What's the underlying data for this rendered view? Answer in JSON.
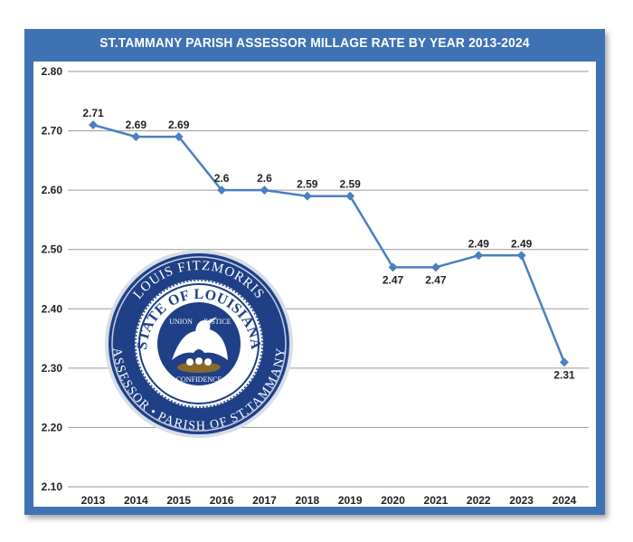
{
  "chart_data": {
    "type": "line",
    "title": "ST.TAMMANY PARISH ASSESSOR MILLAGE RATE BY YEAR 2013-2024",
    "xlabel": "",
    "ylabel": "",
    "categories": [
      "2013",
      "2014",
      "2015",
      "2016",
      "2017",
      "2018",
      "2019",
      "2020",
      "2021",
      "2022",
      "2023",
      "2024"
    ],
    "values": [
      2.71,
      2.69,
      2.69,
      2.6,
      2.6,
      2.59,
      2.59,
      2.47,
      2.47,
      2.49,
      2.49,
      2.31
    ],
    "data_labels": [
      "2.71",
      "2.69",
      "2.69",
      "2.6",
      "2.6",
      "2.59",
      "2.59",
      "2.47",
      "2.47",
      "2.49",
      "2.49",
      "2.31"
    ],
    "label_position": [
      "above",
      "above",
      "above",
      "above",
      "above",
      "above",
      "above",
      "below",
      "below",
      "above",
      "above",
      "below"
    ],
    "yticks": [
      "2.10",
      "2.20",
      "2.30",
      "2.40",
      "2.50",
      "2.60",
      "2.70",
      "2.80"
    ],
    "ylim": [
      2.1,
      2.8
    ],
    "grid": "horizontal",
    "legend": "none",
    "line_color": "#4a7fc1",
    "frame_color": "#3f72b4"
  },
  "seal": {
    "top_text": "LOUIS FITZMORRIS",
    "bottom_text": "ASSESSOR • PARISH OF ST.TAMMANY",
    "inner_top_text": "STATE OF LOUISIANA",
    "motto_words": [
      "UNION",
      "JUSTICE",
      "CONFIDENCE"
    ],
    "emblem": "pelican-icon"
  }
}
